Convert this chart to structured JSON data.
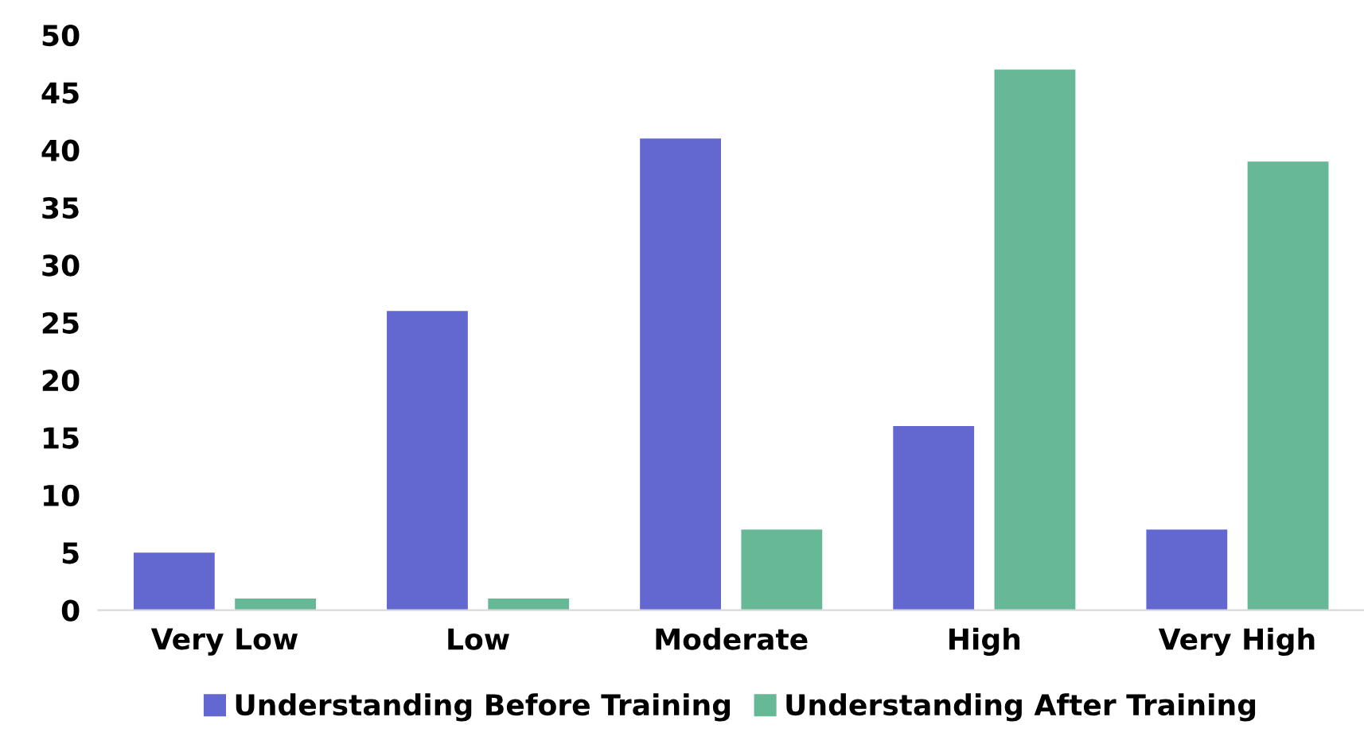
{
  "chart_data": {
    "type": "bar",
    "categories": [
      "Very Low",
      "Low",
      "Moderate",
      "High",
      "Very High"
    ],
    "series": [
      {
        "name": "Understanding Before Training",
        "color": "#6268d0",
        "values": [
          5,
          26,
          41,
          16,
          7
        ]
      },
      {
        "name": "Understanding After Training",
        "color": "#66b897",
        "values": [
          1,
          1,
          7,
          47,
          39
        ]
      }
    ],
    "ylim": [
      0,
      50
    ],
    "yticks": [
      0,
      5,
      10,
      15,
      20,
      25,
      30,
      35,
      40,
      45,
      50
    ],
    "grid": false,
    "legend": "bottom"
  }
}
